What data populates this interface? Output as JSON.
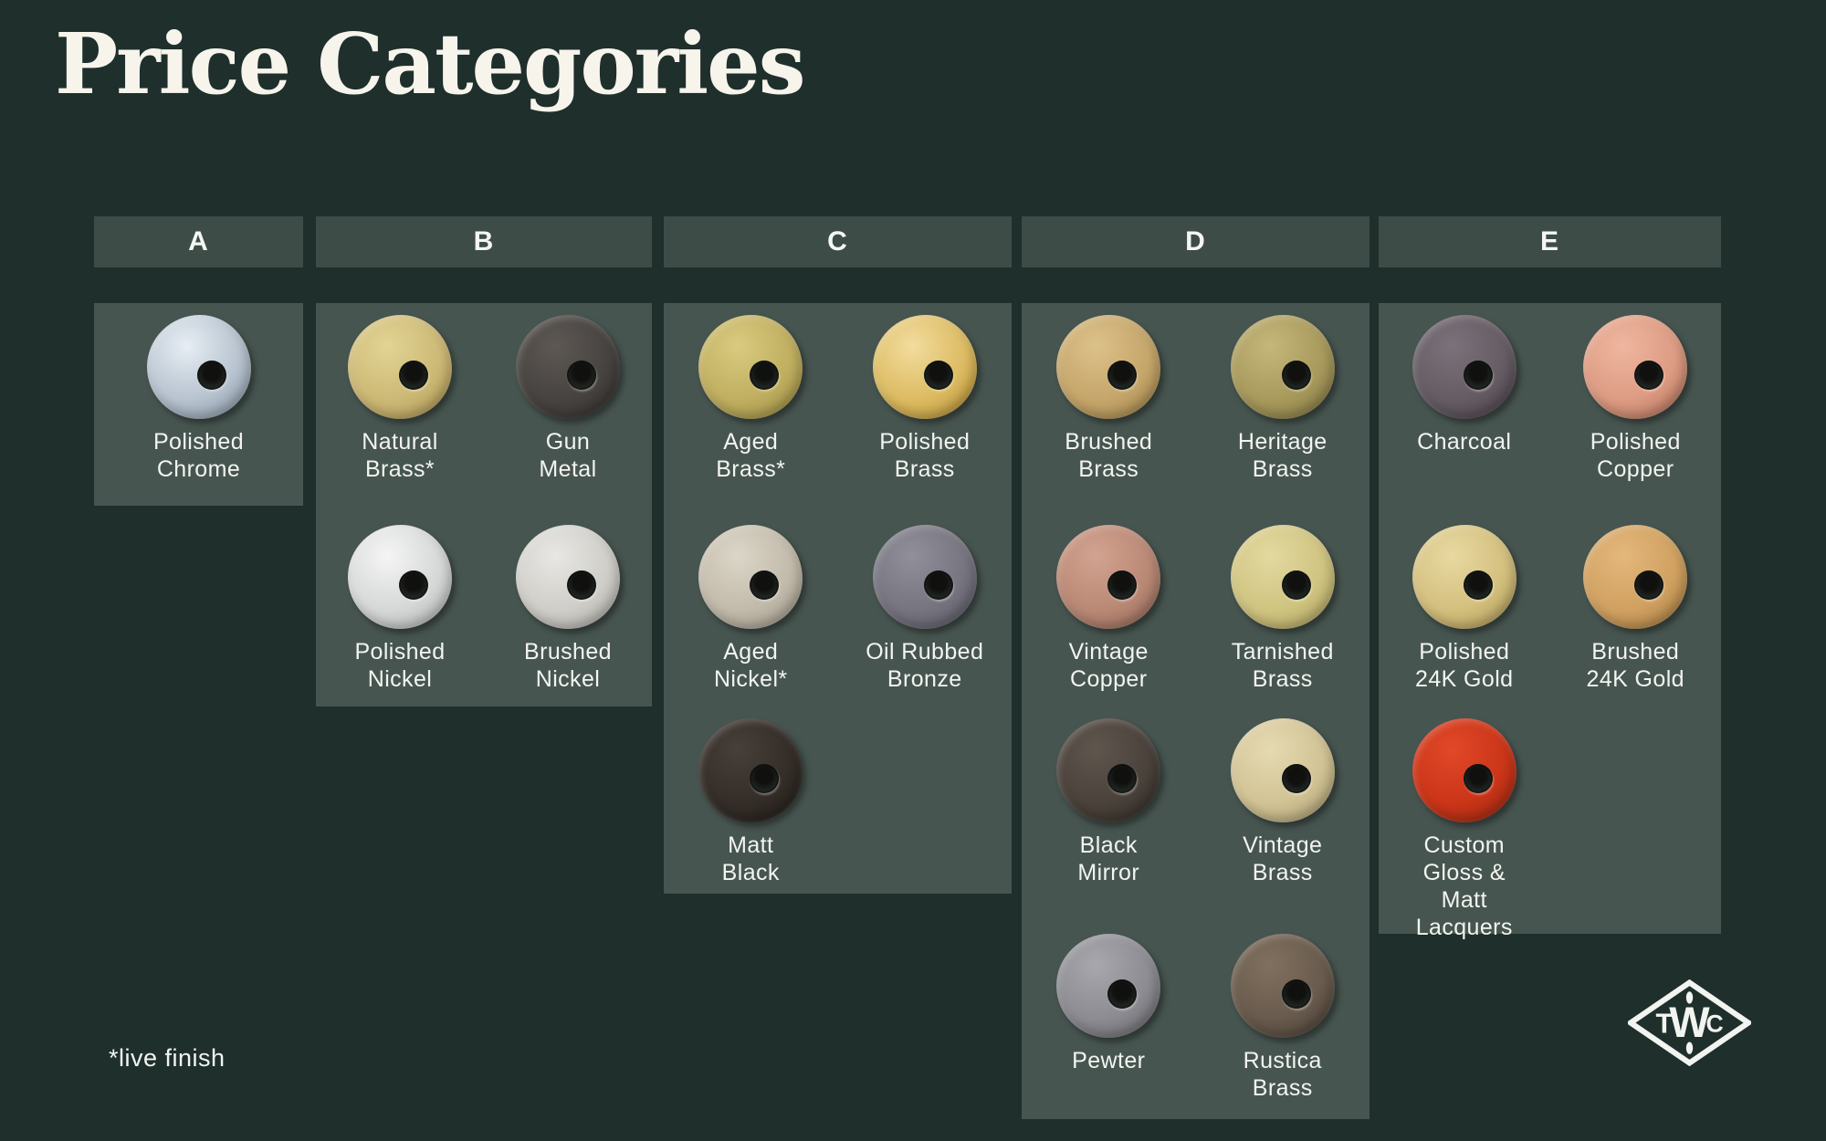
{
  "title": "Price Categories",
  "footnote": "*live finish",
  "logo": {
    "t": "T",
    "w": "W",
    "c": "C"
  },
  "colors": {
    "background": "#1e2f2c",
    "panel": "#475550",
    "header": "#3e4c47",
    "text": "#f2f4f0",
    "title_text": "#f7f4ec"
  },
  "categories": [
    {
      "label": "A",
      "finishes": [
        {
          "name": "Polished Chrome",
          "lines": [
            "Polished",
            "Chrome"
          ],
          "swatch": [
            "#e7eef4",
            "#b7c3cf",
            "#7d8b99"
          ]
        }
      ]
    },
    {
      "label": "B",
      "finishes": [
        {
          "name": "Natural Brass*",
          "lines": [
            "Natural",
            "Brass*"
          ],
          "swatch": [
            "#e2d494",
            "#cdb976",
            "#a78f4c"
          ]
        },
        {
          "name": "Gun Metal",
          "lines": [
            "Gun",
            "Metal"
          ],
          "swatch": [
            "#5d5854",
            "#474340",
            "#2e2b29"
          ]
        },
        {
          "name": "Polished Nickel",
          "lines": [
            "Polished",
            "Nickel"
          ],
          "swatch": [
            "#f4f5f4",
            "#d6d8d7",
            "#a7aaa9"
          ]
        },
        {
          "name": "Brushed Nickel",
          "lines": [
            "Brushed",
            "Nickel"
          ],
          "swatch": [
            "#e8e7e3",
            "#cfcec9",
            "#a3a29d"
          ]
        }
      ]
    },
    {
      "label": "C",
      "finishes": [
        {
          "name": "Aged Brass*",
          "lines": [
            "Aged",
            "Brass*"
          ],
          "swatch": [
            "#d9ca80",
            "#c0af60",
            "#93853d"
          ]
        },
        {
          "name": "Polished Brass",
          "lines": [
            "Polished",
            "Brass"
          ],
          "swatch": [
            "#f2dc9e",
            "#dcbb62",
            "#ad8729"
          ]
        },
        {
          "name": "Aged Nickel*",
          "lines": [
            "Aged",
            "Nickel*"
          ],
          "swatch": [
            "#dcd6c8",
            "#c2bbab",
            "#968f80"
          ]
        },
        {
          "name": "Oil Rubbed Bronze",
          "lines": [
            "Oil Rubbed",
            "Bronze"
          ],
          "swatch": [
            "#908f9a",
            "#767580",
            "#54535d"
          ]
        },
        {
          "name": "Matt Black",
          "lines": [
            "Matt",
            "Black"
          ],
          "swatch": [
            "#473f39",
            "#342d28",
            "#1f1b17"
          ]
        }
      ]
    },
    {
      "label": "D",
      "finishes": [
        {
          "name": "Brushed Brass",
          "lines": [
            "Brushed",
            "Brass"
          ],
          "swatch": [
            "#dcc189",
            "#c5a66b",
            "#9a7c43"
          ]
        },
        {
          "name": "Heritage Brass",
          "lines": [
            "Heritage",
            "Brass"
          ],
          "swatch": [
            "#c5b67a",
            "#a89a5c",
            "#7b6f3e"
          ]
        },
        {
          "name": "Vintage Copper",
          "lines": [
            "Vintage",
            "Copper"
          ],
          "swatch": [
            "#d2a390",
            "#ba8976",
            "#8d6253"
          ]
        },
        {
          "name": "Tarnished Brass",
          "lines": [
            "Tarnished",
            "Brass"
          ],
          "swatch": [
            "#e3d9a0",
            "#d0c481",
            "#a79b57"
          ]
        },
        {
          "name": "Black Mirror",
          "lines": [
            "Black",
            "Mirror"
          ],
          "swatch": [
            "#5f564e",
            "#4a423b",
            "#2e2823"
          ]
        },
        {
          "name": "Vintage Brass",
          "lines": [
            "Vintage",
            "Brass"
          ],
          "swatch": [
            "#e6dab2",
            "#d1c395",
            "#a1946a"
          ]
        },
        {
          "name": "Pewter",
          "lines": [
            "Pewter"
          ],
          "swatch": [
            "#a7a7ad",
            "#8c8c92",
            "#616166"
          ]
        },
        {
          "name": "Rustica Brass",
          "lines": [
            "Rustica",
            "Brass"
          ],
          "swatch": [
            "#80705f",
            "#695b4d",
            "#443a31"
          ]
        }
      ]
    },
    {
      "label": "E",
      "finishes": [
        {
          "name": "Charcoal",
          "lines": [
            "Charcoal"
          ],
          "swatch": [
            "#7b717a",
            "#665c64",
            "#443d44"
          ]
        },
        {
          "name": "Polished Copper",
          "lines": [
            "Polished",
            "Copper"
          ],
          "swatch": [
            "#efb69f",
            "#dd9b83",
            "#a96a52"
          ]
        },
        {
          "name": "Polished 24K Gold",
          "lines": [
            "Polished",
            "24K Gold"
          ],
          "swatch": [
            "#e8d9a2",
            "#d4c07e",
            "#a8914f"
          ]
        },
        {
          "name": "Brushed 24K Gold",
          "lines": [
            "Brushed",
            "24K Gold"
          ],
          "swatch": [
            "#e4b77b",
            "#d0a161",
            "#a0763b"
          ]
        },
        {
          "name": "Custom Gloss & Matt Lacquers",
          "lines": [
            "Custom",
            "Gloss &",
            "Matt",
            "Lacquers"
          ],
          "swatch": [
            "#e14829",
            "#cb3518",
            "#8e2510"
          ]
        }
      ]
    }
  ]
}
